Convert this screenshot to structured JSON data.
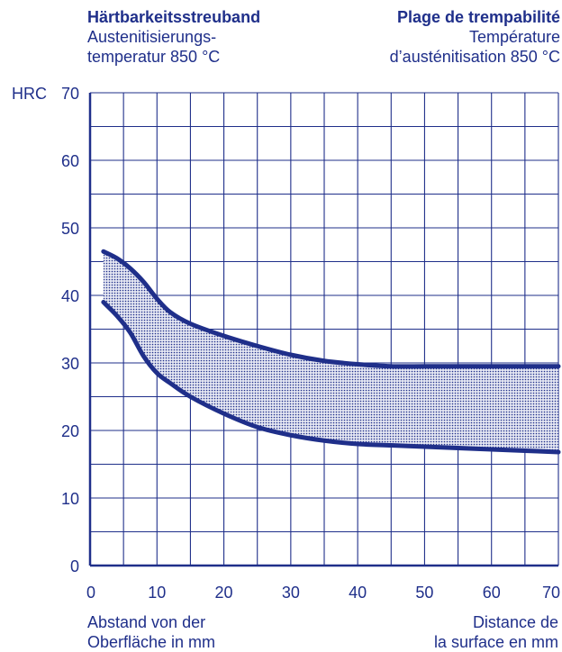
{
  "colors": {
    "ink": "#1f2f8a",
    "band_fill": "#c8cbe2"
  },
  "header_left": {
    "title": "Härtbarkeitsstreuband",
    "line1": "Austenitisierungs-",
    "line2": "temperatur 850 °C"
  },
  "header_right": {
    "title": "Plage de trempabilité",
    "line1": "Température",
    "line2": "d’austénitisation 850 °C"
  },
  "xlabel_left": {
    "line1": "Abstand von der",
    "line2": "Oberfläche in mm"
  },
  "xlabel_right": {
    "line1": "Distance de",
    "line2": "la surface en mm"
  },
  "chart_data": {
    "type": "area",
    "title": "",
    "ylabel": "HRC",
    "xlabel": "",
    "xlim": [
      0,
      70
    ],
    "ylim": [
      0,
      70
    ],
    "x_ticks": [
      0,
      10,
      20,
      30,
      40,
      50,
      60,
      70
    ],
    "y_ticks": [
      0,
      10,
      20,
      30,
      40,
      50,
      60,
      70
    ],
    "grid": true,
    "series": [
      {
        "values_x": [
          2,
          4,
          6,
          8,
          10,
          12,
          15,
          20,
          25,
          30,
          35,
          40,
          45,
          50,
          55,
          60,
          65,
          70
        ],
        "values_y": [
          46.5,
          45.5,
          44,
          42,
          39.5,
          37.5,
          35.8,
          34,
          32.5,
          31.2,
          30.3,
          29.8,
          29.5,
          29.5,
          29.5,
          29.5,
          29.5,
          29.5
        ]
      },
      {
        "values_x": [
          2,
          4,
          6,
          8,
          10,
          12,
          15,
          20,
          25,
          30,
          35,
          40,
          45,
          50,
          55,
          60,
          65,
          70
        ],
        "values_y": [
          39,
          37,
          34.5,
          31,
          28.5,
          27,
          25,
          22.5,
          20.5,
          19.3,
          18.5,
          18,
          17.8,
          17.6,
          17.4,
          17.2,
          17,
          16.8
        ]
      }
    ]
  }
}
